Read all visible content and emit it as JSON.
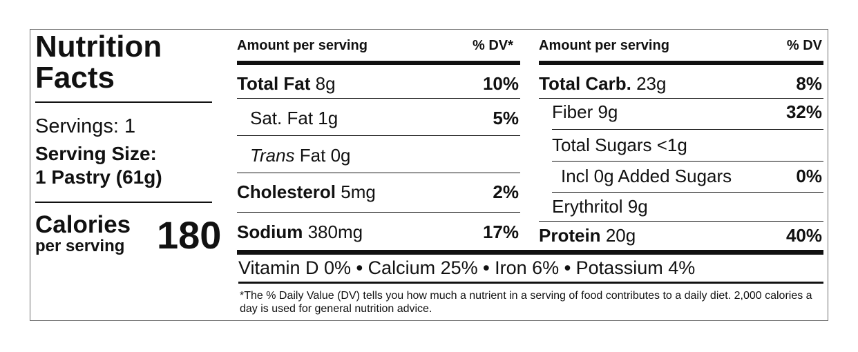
{
  "label": {
    "title_line1": "Nutrition",
    "title_line2": "Facts",
    "servings": "Servings: 1",
    "serving_size_label": "Serving Size:",
    "serving_size_value": "1 Pastry (61g)",
    "calories_label": "Calories",
    "calories_sub": "per serving",
    "calories_value": "180"
  },
  "left_table": {
    "header_amount": "Amount per serving",
    "header_dv": "% DV*",
    "rows": [
      {
        "name": "Total Fat",
        "amount": "8g",
        "dv": "10%"
      },
      {
        "name": "Sat. Fat",
        "amount": "1g",
        "dv": "5%"
      },
      {
        "name_italic": "Trans",
        "name": "Fat",
        "amount": "0g",
        "dv": ""
      },
      {
        "name": "Cholesterol",
        "amount": "5mg",
        "dv": "2%"
      },
      {
        "name": "Sodium",
        "amount": "380mg",
        "dv": "17%"
      }
    ]
  },
  "right_table": {
    "header_amount": "Amount per serving",
    "header_dv": "% DV",
    "rows": [
      {
        "name": "Total Carb.",
        "amount": "23g",
        "dv": "8%"
      },
      {
        "name": "Fiber 9g",
        "dv": "32%"
      },
      {
        "name": "Total Sugars <1g",
        "dv": ""
      },
      {
        "name": "Incl 0g Added Sugars",
        "dv": "0%"
      },
      {
        "name": "Erythritol 9g",
        "dv": ""
      },
      {
        "name": "Protein",
        "amount": "20g",
        "dv": "40%"
      }
    ]
  },
  "vitamins": {
    "items": [
      "Vitamin D 0%",
      "Calcium 25%",
      "Iron 6%",
      "Potassium 4%"
    ],
    "separator": "•"
  },
  "footnote": "*The % Daily Value (DV) tells you how much a nutrient in a serving of food contributes to a daily diet. 2,000 calories a day is used for general nutrition advice."
}
